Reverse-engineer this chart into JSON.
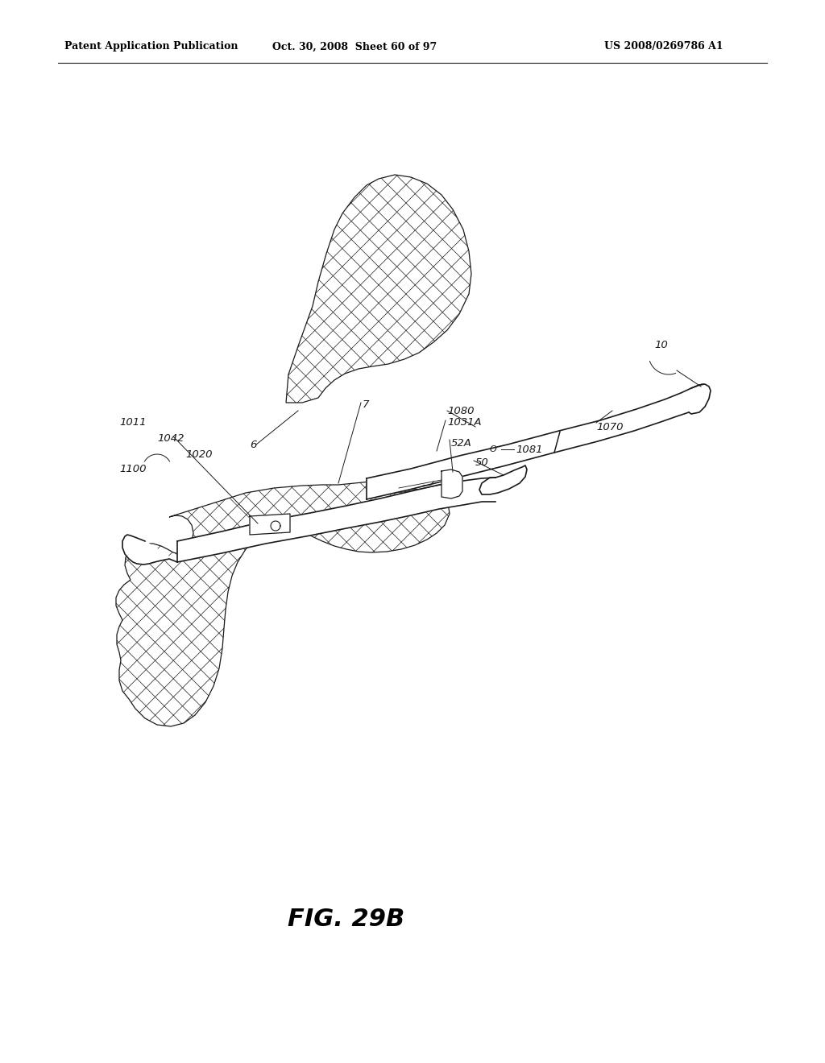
{
  "bg_color": "#ffffff",
  "line_color": "#1a1a1a",
  "header_left": "Patent Application Publication",
  "header_mid": "Oct. 30, 2008  Sheet 60 of 97",
  "header_right": "US 2008/0269786 A1",
  "figure_label": "FIG. 29B",
  "lw": 1.2,
  "lw_thin": 0.7,
  "label_fontsize": 9.5
}
